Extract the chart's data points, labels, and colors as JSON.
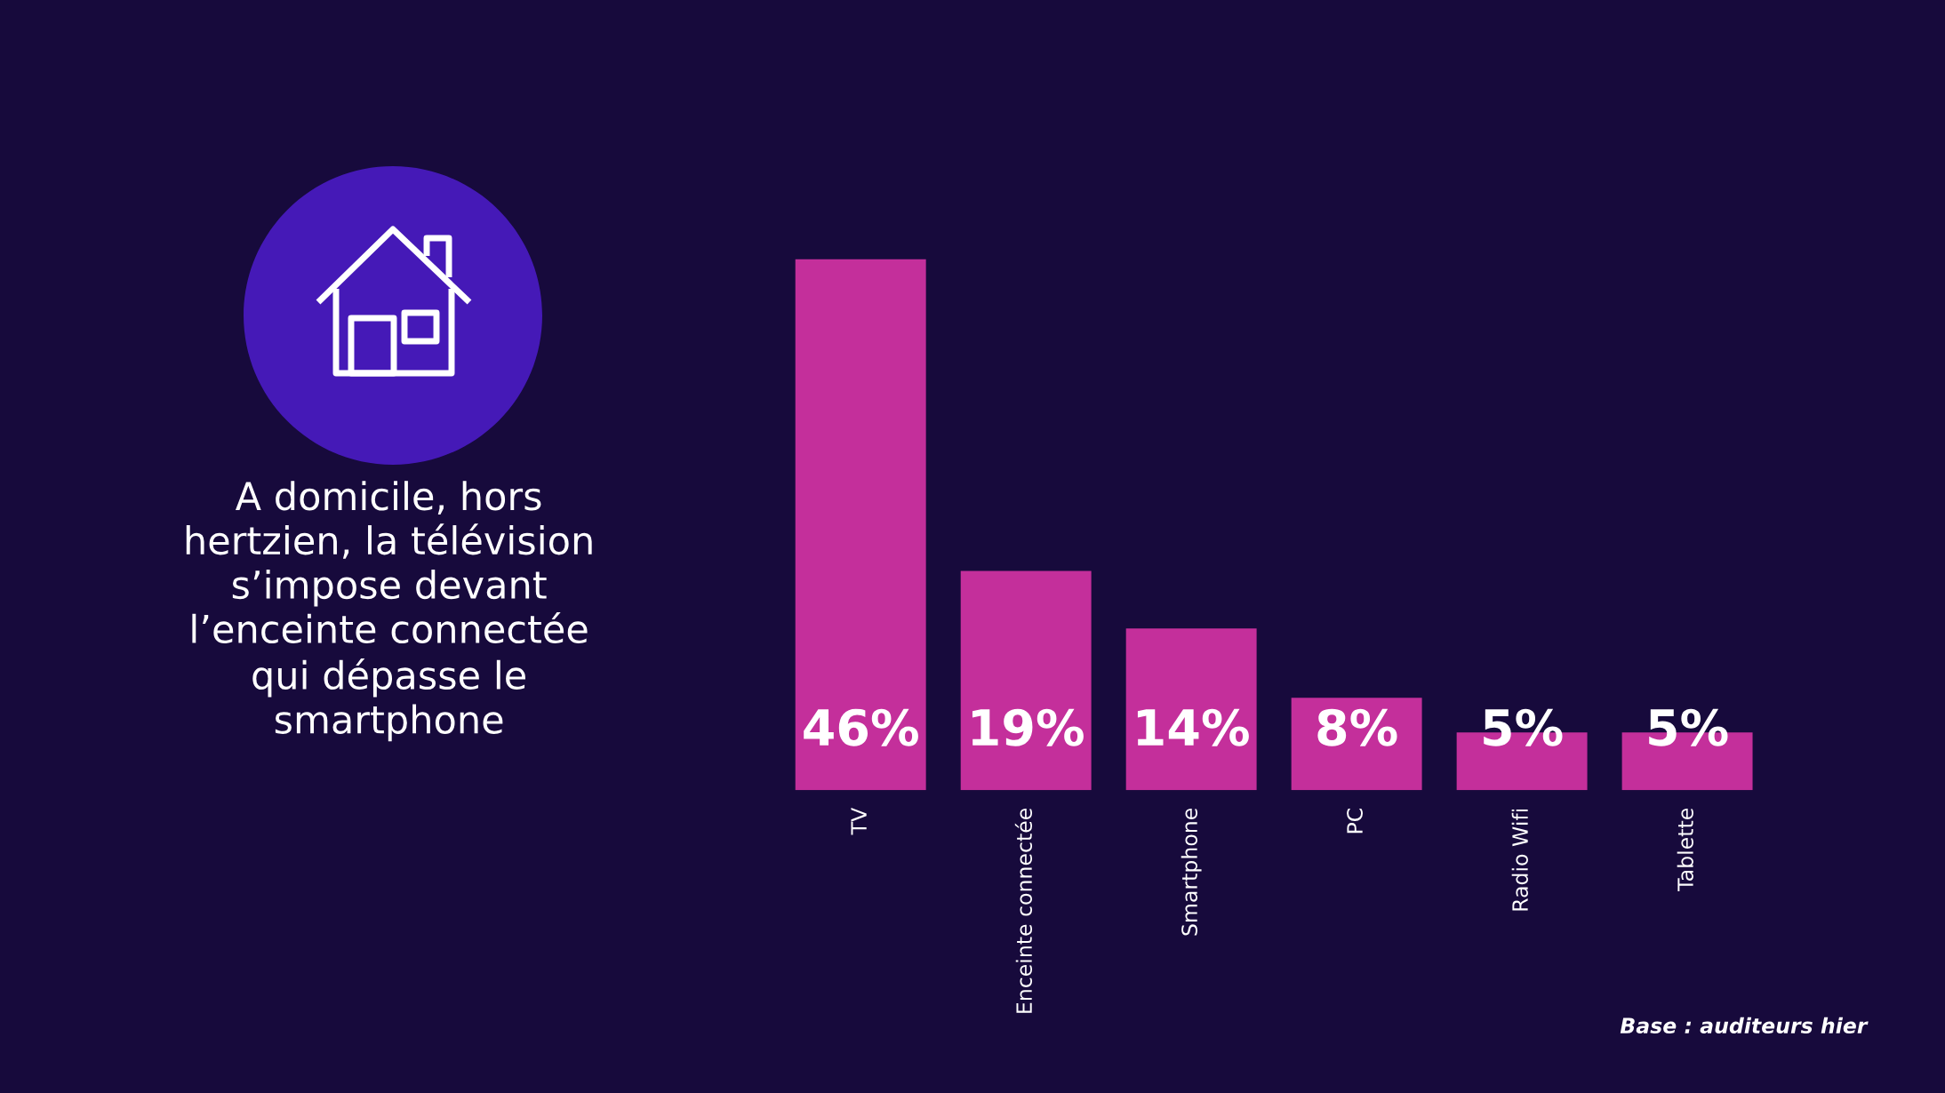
{
  "chart_data": {
    "type": "bar",
    "title": "A domicile, hors\nhertzien, la télévision\ns’impose devant\nl’enceinte connectée\nqui dépasse le\nsmartphone",
    "categories": [
      "TV",
      "Enceinte connectée",
      "Smartphone",
      "PC",
      "Radio Wifi",
      "Tablette"
    ],
    "values": [
      46,
      19,
      14,
      8,
      5,
      5
    ],
    "value_labels": [
      "46%",
      "19%",
      "14%",
      "8%",
      "5%",
      "5%"
    ],
    "color": "#c42f9b",
    "annotations": [
      "Base : auditeurs hier"
    ]
  }
}
